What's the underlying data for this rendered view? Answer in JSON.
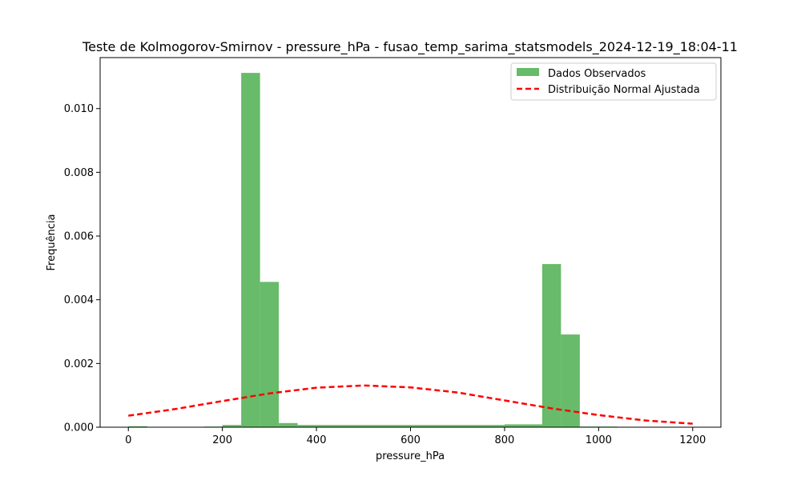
{
  "chart_data": {
    "type": "bar",
    "title": "Teste de Kolmogorov-Smirnov - pressure_hPa - fusao_temp_sarima_statsmodels_2024-12-19_18:04-11",
    "xlabel": "pressure_hPa",
    "ylabel": "Frequência",
    "xlim": [
      -60,
      1260
    ],
    "ylim": [
      0,
      0.0116
    ],
    "xticks": [
      0,
      200,
      400,
      600,
      800,
      1000,
      1200
    ],
    "yticks": [
      0.0,
      0.002,
      0.004,
      0.006,
      0.008,
      0.01
    ],
    "ytick_labels": [
      "0.000",
      "0.002",
      "0.004",
      "0.006",
      "0.008",
      "0.010"
    ],
    "legend_position": "top-right",
    "histogram": {
      "name": "Dados Observados",
      "color": "#4caf50",
      "bin_edges": [
        0,
        40,
        80,
        120,
        160,
        200,
        240,
        280,
        320,
        360,
        400,
        440,
        480,
        520,
        560,
        600,
        640,
        680,
        720,
        760,
        800,
        840,
        880,
        920,
        960,
        1000,
        1040,
        1080,
        1120,
        1160,
        1200
      ],
      "values": [
        3e-05,
        0,
        0,
        0,
        2e-05,
        7e-05,
        0.01112,
        0.00456,
        0.00013,
        7e-05,
        7e-05,
        7e-05,
        7e-05,
        7e-05,
        7e-05,
        7e-05,
        7e-05,
        7e-05,
        7e-05,
        7e-05,
        9e-05,
        9e-05,
        0.00512,
        0.00291,
        2e-05,
        2e-05,
        1e-05,
        0,
        0,
        1e-05
      ]
    },
    "fit": {
      "name": "Distribuição Normal Ajustada",
      "color": "#ff0000",
      "mean": 505,
      "peak": 0.001315,
      "x_range": [
        0,
        1200
      ],
      "x": [
        0,
        100,
        200,
        300,
        400,
        500,
        600,
        700,
        800,
        900,
        1000,
        1100,
        1200
      ],
      "y": [
        0.00036,
        0.00057,
        0.00082,
        0.00106,
        0.00124,
        0.00131,
        0.00125,
        0.00109,
        0.00084,
        0.00059,
        0.00038,
        0.00021,
        0.00011
      ]
    }
  }
}
